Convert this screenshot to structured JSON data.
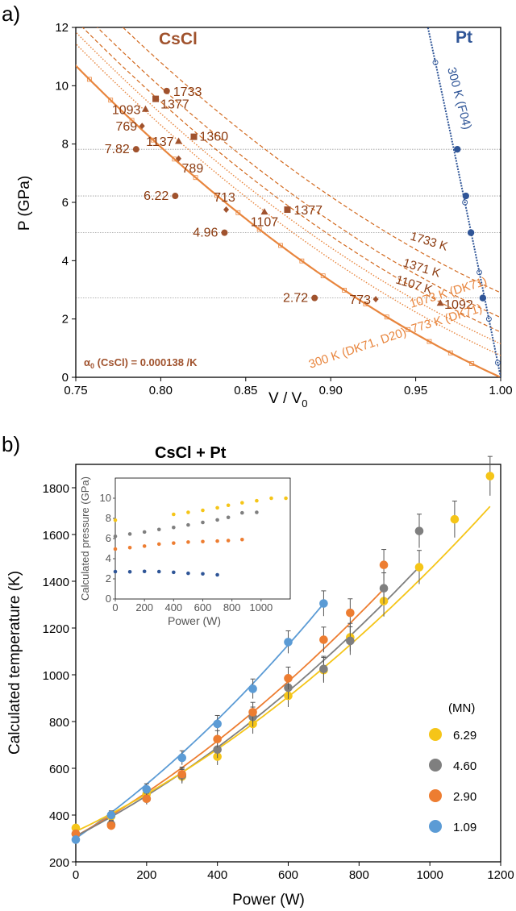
{
  "chart_data": [
    {
      "type": "scatter",
      "panel_label": "a)",
      "title_cscl": "CsCl",
      "title_pt": "Pt",
      "xlabel": "V / V",
      "xlabel_sub": "0",
      "ylabel": "P (GPa)",
      "xlim": [
        0.75,
        1.0
      ],
      "ylim": [
        0,
        12
      ],
      "xticks": [
        "0.75",
        "0.80",
        "0.85",
        "0.90",
        "0.95",
        "1.00"
      ],
      "yticks": [
        "0",
        "2",
        "4",
        "6",
        "8",
        "10",
        "12"
      ],
      "annotation_alpha": "α",
      "annotation_alpha_sub": "0",
      "annotation_alpha_rest": " (CsCl) = 0.000138 /K",
      "colors": {
        "cscl_300": "#E8853D",
        "cscl_hot": "#D2691E",
        "points": "#A0522D",
        "pt": "#2F5597",
        "guide": "#9a9a9a"
      },
      "horizontal_guides": [
        7.82,
        6.22,
        4.96,
        2.72
      ],
      "isotherm_labels": [
        "1733 K",
        "1371 K",
        "1107 K",
        "1073 K (DK71)",
        "773 K (DK71)",
        "300 K (DK71, D20)"
      ],
      "pt_curve_label": "300 K (F04)",
      "cscl_300K_points": [
        {
          "x": 0.7855,
          "y": 7.82,
          "label": "7.82"
        },
        {
          "x": 0.8085,
          "y": 6.22,
          "label": "6.22"
        },
        {
          "x": 0.8375,
          "y": 4.96,
          "label": "4.96"
        },
        {
          "x": 0.8905,
          "y": 2.72,
          "label": "2.72"
        }
      ],
      "cscl_hot_points": [
        {
          "x": 0.8035,
          "y": 9.82,
          "label": "1733",
          "marker": "circle"
        },
        {
          "x": 0.797,
          "y": 9.55,
          "label": "1377",
          "marker": "square"
        },
        {
          "x": 0.8195,
          "y": 8.25,
          "label": "1360",
          "marker": "square"
        },
        {
          "x": 0.8745,
          "y": 5.75,
          "label": "1377",
          "marker": "square"
        },
        {
          "x": 0.791,
          "y": 9.2,
          "label": "1093",
          "marker": "triangle"
        },
        {
          "x": 0.8105,
          "y": 8.1,
          "label": "1137",
          "marker": "triangle"
        },
        {
          "x": 0.861,
          "y": 5.68,
          "label": "1107",
          "marker": "triangle"
        },
        {
          "x": 0.9645,
          "y": 2.55,
          "label": "1092",
          "marker": "triangle"
        },
        {
          "x": 0.789,
          "y": 8.62,
          "label": "769",
          "marker": "diamond"
        },
        {
          "x": 0.8105,
          "y": 7.5,
          "label": "789",
          "marker": "diamond"
        },
        {
          "x": 0.8385,
          "y": 5.75,
          "label": "713",
          "marker": "diamond"
        },
        {
          "x": 0.9265,
          "y": 2.68,
          "label": "773",
          "marker": "diamond"
        }
      ],
      "pt_points": [
        {
          "x": 0.9745,
          "y": 7.82
        },
        {
          "x": 0.9795,
          "y": 6.22
        },
        {
          "x": 0.9825,
          "y": 4.96
        },
        {
          "x": 0.9895,
          "y": 2.72
        }
      ]
    },
    {
      "type": "scatter",
      "panel_label": "b)",
      "title": "CsCl + Pt",
      "xlabel": "Power (W)",
      "ylabel": "Calculated temperature (K)",
      "xlim": [
        0,
        1200
      ],
      "ylim": [
        200,
        1900
      ],
      "xticks": [
        "0",
        "200",
        "400",
        "600",
        "800",
        "1000",
        "1200"
      ],
      "yticks": [
        "200",
        "400",
        "600",
        "800",
        "1000",
        "1200",
        "1400",
        "1600",
        "1800"
      ],
      "legend_title": "(MN)",
      "series": [
        {
          "name": "6.29",
          "color": "#F5C518",
          "x": [
            0,
            100,
            200,
            300,
            400,
            500,
            600,
            700,
            775,
            870,
            970,
            1070,
            1170
          ],
          "values": [
            345,
            395,
            490,
            565,
            650,
            790,
            910,
            1020,
            1160,
            1315,
            1460,
            1665,
            1850
          ]
        },
        {
          "name": "4.60",
          "color": "#7F7F7F",
          "x": [
            0,
            100,
            200,
            300,
            400,
            500,
            600,
            700,
            775,
            870,
            970
          ],
          "values": [
            320,
            360,
            470,
            570,
            680,
            820,
            945,
            1025,
            1145,
            1370,
            1615
          ]
        },
        {
          "name": "2.90",
          "color": "#ED7D31",
          "x": [
            0,
            100,
            200,
            300,
            400,
            500,
            600,
            700,
            775,
            870
          ],
          "values": [
            320,
            355,
            470,
            575,
            725,
            840,
            985,
            1150,
            1265,
            1470
          ]
        },
        {
          "name": "1.09",
          "color": "#5B9BD5",
          "x": [
            0,
            100,
            200,
            300,
            400,
            500,
            600,
            700
          ],
          "values": [
            295,
            400,
            510,
            645,
            790,
            940,
            1140,
            1305
          ]
        }
      ],
      "inset": {
        "ylabel": "Calculated pressure (GPa)",
        "xlabel": "Power (W)",
        "xlim": [
          0,
          1200
        ],
        "ylim": [
          0,
          12
        ],
        "xticks": [
          "0",
          "200",
          "400",
          "600",
          "800",
          "1000"
        ],
        "yticks": [
          "0",
          "2",
          "4",
          "6",
          "8",
          "10"
        ],
        "series": [
          {
            "name": "6.29",
            "color": "#F5C518",
            "x": [
              0,
              400,
              500,
              600,
              700,
              775,
              870,
              970,
              1070,
              1170
            ],
            "values": [
              7.82,
              8.4,
              8.6,
              8.8,
              9.05,
              9.3,
              9.55,
              9.75,
              10.0,
              10.0
            ]
          },
          {
            "name": "4.60",
            "color": "#7F7F7F",
            "x": [
              0,
              100,
              200,
              300,
              400,
              500,
              600,
              700,
              775,
              870,
              970
            ],
            "values": [
              6.22,
              6.45,
              6.65,
              6.9,
              7.1,
              7.35,
              7.6,
              7.85,
              8.1,
              8.55,
              8.6
            ]
          },
          {
            "name": "2.90",
            "color": "#ED7D31",
            "x": [
              0,
              100,
              200,
              300,
              400,
              500,
              600,
              700,
              775,
              870
            ],
            "values": [
              4.96,
              5.1,
              5.25,
              5.45,
              5.55,
              5.65,
              5.7,
              5.75,
              5.8,
              5.9
            ]
          },
          {
            "name": "1.09",
            "color": "#2F5597",
            "x": [
              0,
              100,
              200,
              300,
              400,
              500,
              600,
              700
            ],
            "values": [
              2.72,
              2.7,
              2.74,
              2.72,
              2.65,
              2.55,
              2.5,
              2.4
            ]
          }
        ]
      }
    }
  ]
}
